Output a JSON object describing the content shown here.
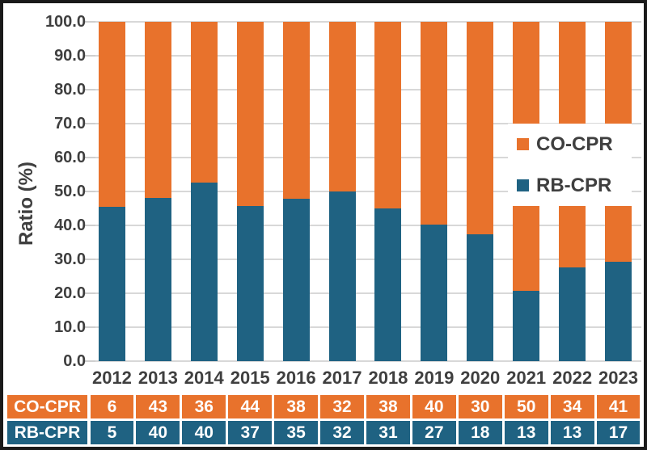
{
  "chart_data": {
    "type": "bar",
    "subtype": "stacked-100-percent",
    "title": "",
    "xlabel": "",
    "ylabel": "Ratio (%)",
    "ylim": [
      0,
      100
    ],
    "grid": true,
    "legend_position": "overlay-right",
    "y_tick_labels": [
      "100.0",
      "90.0",
      "80.0",
      "70.0",
      "60.0",
      "50.0",
      "40.0",
      "30.0",
      "20.0",
      "10.0",
      "0.0"
    ],
    "categories": [
      "2012",
      "2013",
      "2014",
      "2015",
      "2016",
      "2017",
      "2018",
      "2019",
      "2020",
      "2021",
      "2022",
      "2023"
    ],
    "series": [
      {
        "name": "CO-CPR",
        "color": "#E8722C",
        "values": [
          6,
          43,
          36,
          44,
          38,
          32,
          38,
          40,
          30,
          50,
          34,
          41
        ]
      },
      {
        "name": "RB-CPR",
        "color": "#1F6282",
        "values": [
          5,
          40,
          40,
          37,
          35,
          32,
          31,
          27,
          18,
          13,
          13,
          17
        ]
      }
    ],
    "bar_rule": "blue RB-CPR segment height = RB/(RB+CO)*100, orange CO-CPR fills remainder to 100%"
  },
  "colors": {
    "text": "#3F3F3F",
    "grid": "#D8D8D8",
    "tick": "#CFCFCF",
    "table_text": "#FFFFFF",
    "frame_border": "#1A1A1A",
    "background": "#FFFFFF"
  }
}
